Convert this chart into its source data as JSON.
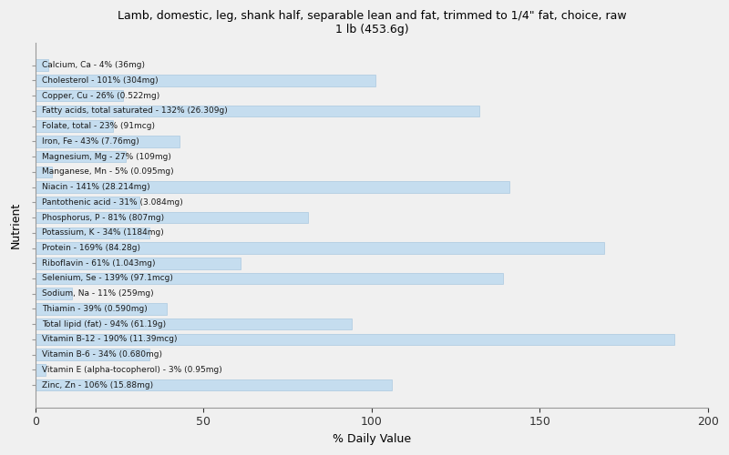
{
  "title": "Lamb, domestic, leg, shank half, separable lean and fat, trimmed to 1/4\" fat, choice, raw\n1 lb (453.6g)",
  "xlabel": "% Daily Value",
  "ylabel": "Nutrient",
  "bar_color": "#c5ddef",
  "bar_edge_color": "#aac8e0",
  "background_color": "#f0f0f0",
  "xlim": [
    0,
    200
  ],
  "xticks": [
    0,
    50,
    100,
    150,
    200
  ],
  "nutrients": [
    "Calcium, Ca - 4% (36mg)",
    "Cholesterol - 101% (304mg)",
    "Copper, Cu - 26% (0.522mg)",
    "Fatty acids, total saturated - 132% (26.309g)",
    "Folate, total - 23% (91mcg)",
    "Iron, Fe - 43% (7.76mg)",
    "Magnesium, Mg - 27% (109mg)",
    "Manganese, Mn - 5% (0.095mg)",
    "Niacin - 141% (28.214mg)",
    "Pantothenic acid - 31% (3.084mg)",
    "Phosphorus, P - 81% (807mg)",
    "Potassium, K - 34% (1184mg)",
    "Protein - 169% (84.28g)",
    "Riboflavin - 61% (1.043mg)",
    "Selenium, Se - 139% (97.1mcg)",
    "Sodium, Na - 11% (259mg)",
    "Thiamin - 39% (0.590mg)",
    "Total lipid (fat) - 94% (61.19g)",
    "Vitamin B-12 - 190% (11.39mcg)",
    "Vitamin B-6 - 34% (0.680mg)",
    "Vitamin E (alpha-tocopherol) - 3% (0.95mg)",
    "Zinc, Zn - 106% (15.88mg)"
  ],
  "values": [
    4,
    101,
    26,
    132,
    23,
    43,
    27,
    5,
    141,
    31,
    81,
    34,
    169,
    61,
    139,
    11,
    39,
    94,
    190,
    34,
    3,
    106
  ]
}
